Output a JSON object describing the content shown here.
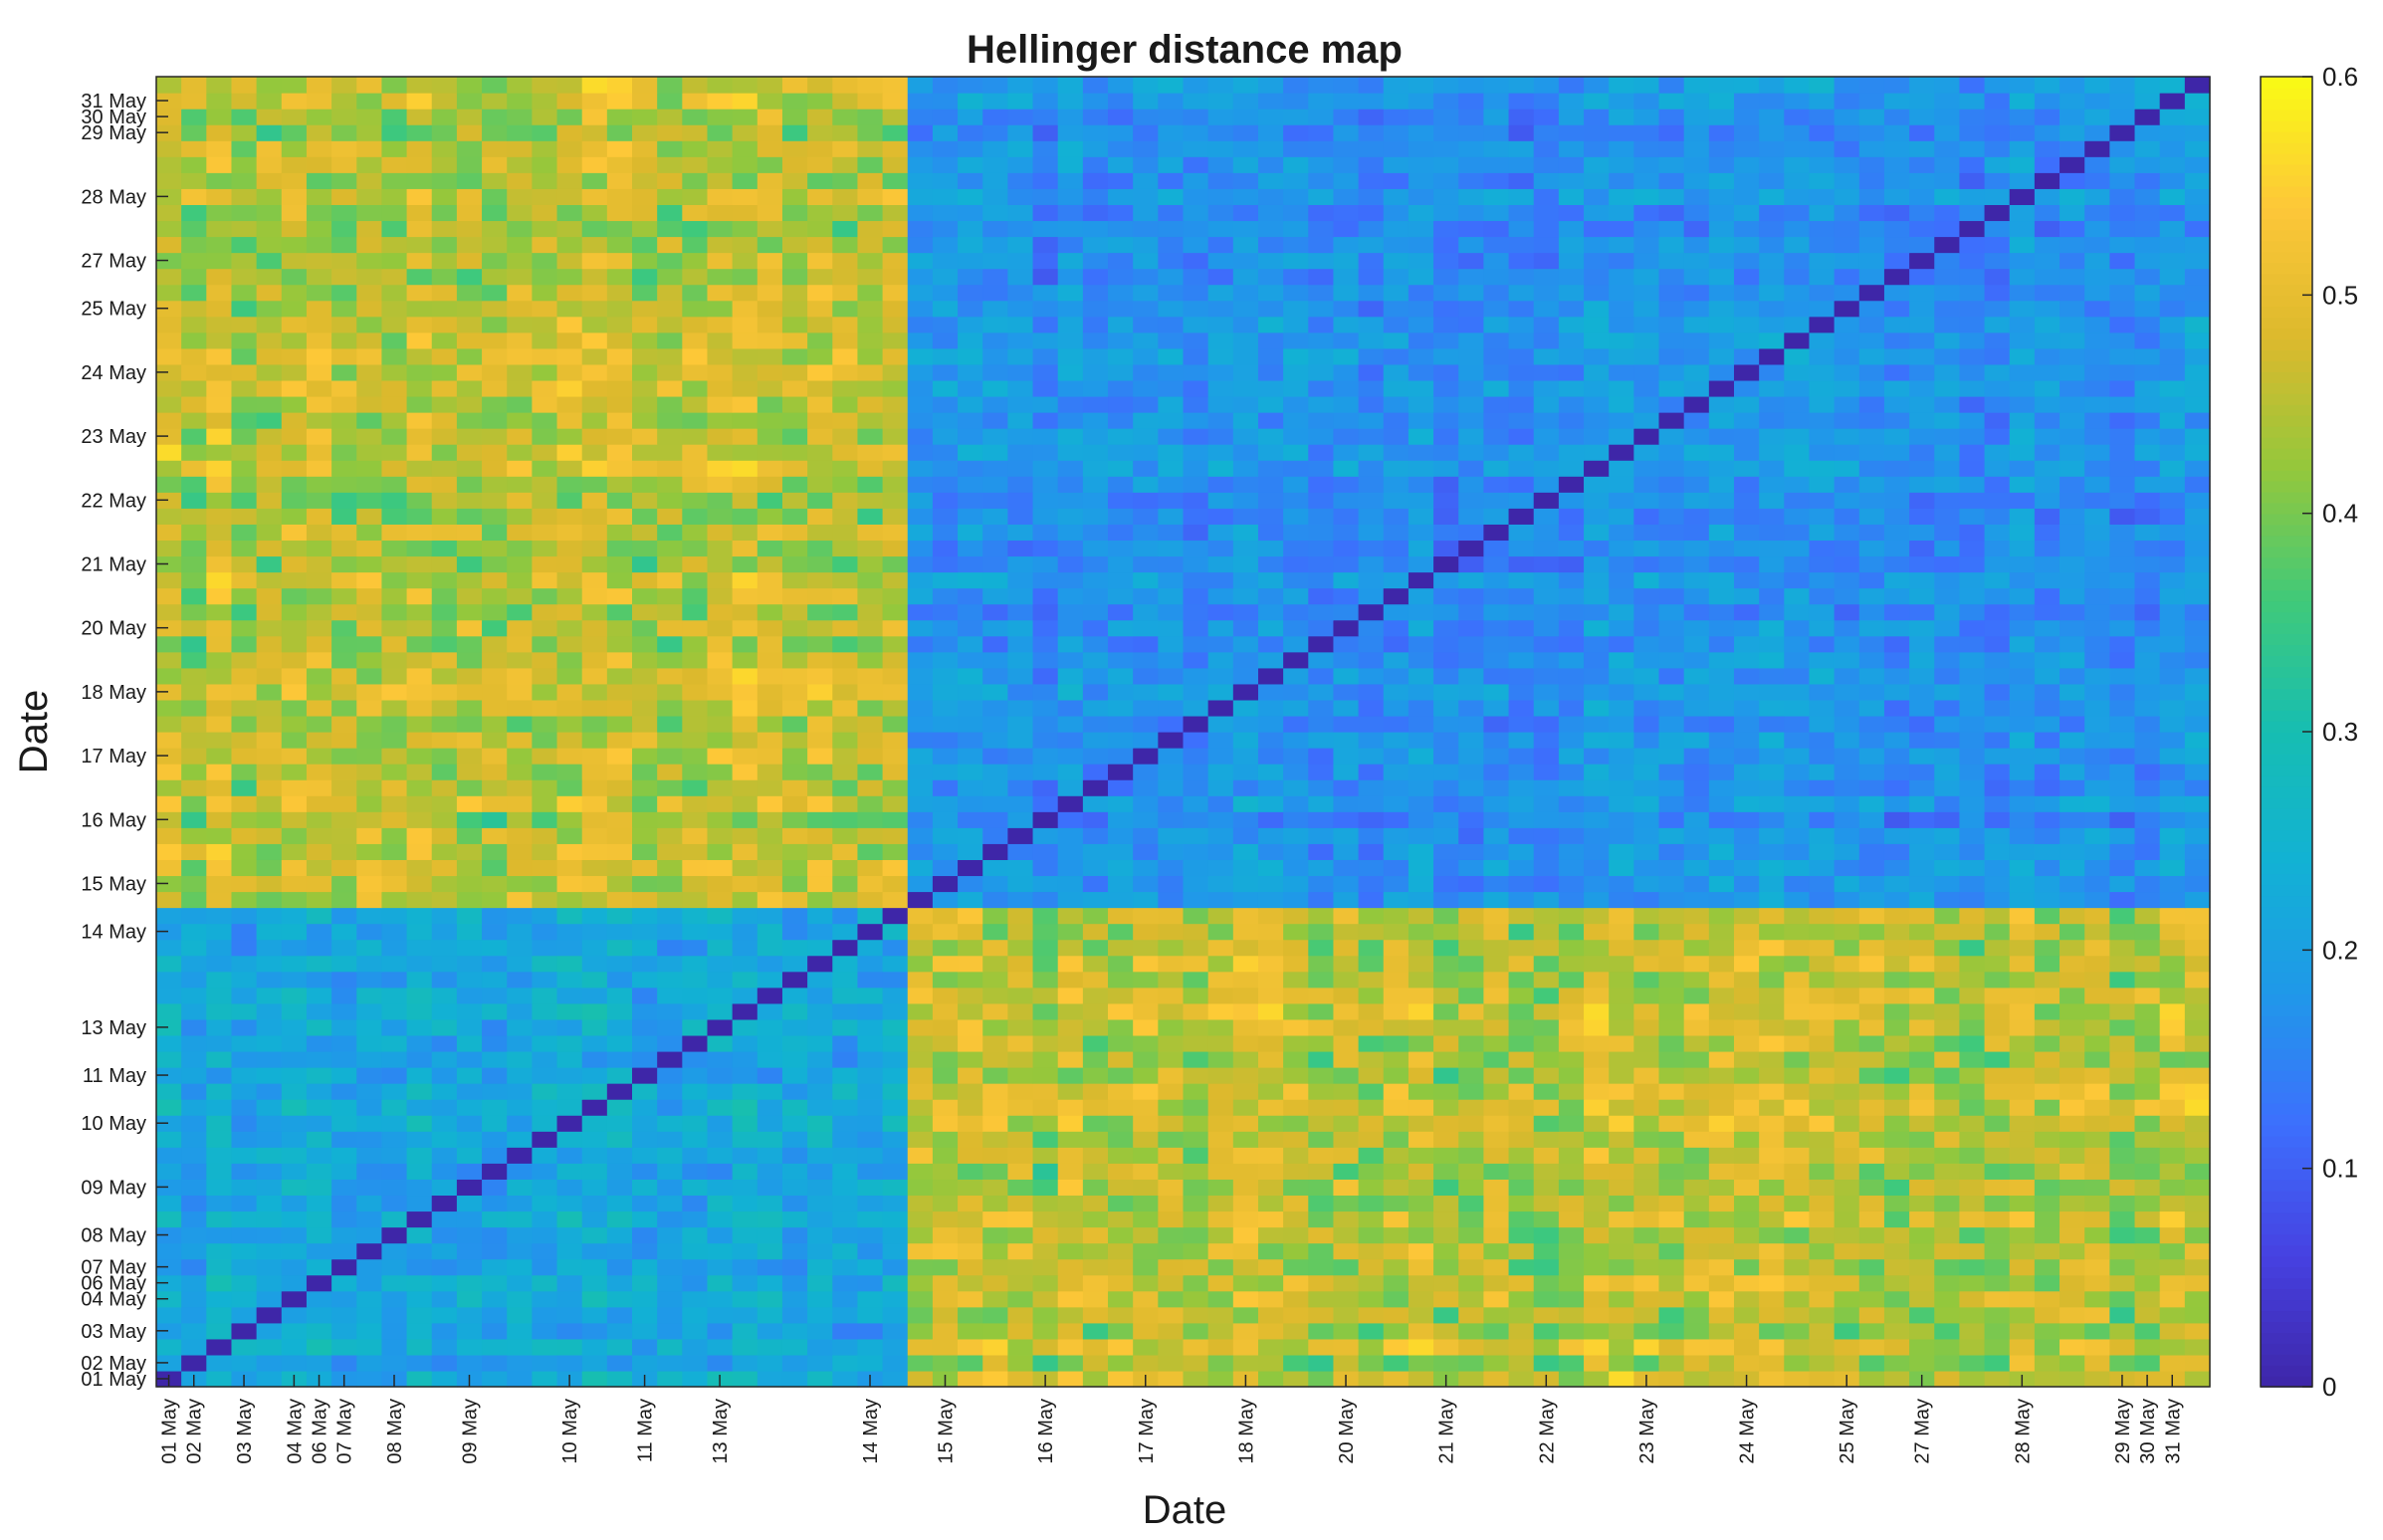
{
  "chart_data": {
    "type": "heatmap",
    "title": "Hellinger distance map",
    "xlabel": "Date",
    "ylabel": "Date",
    "n": 82,
    "block_split_index": 30,
    "x_tick_labels": [
      "01 May",
      "02 May",
      "03 May",
      "04 May",
      "06 May",
      "07 May",
      "08 May",
      "09 May",
      "10 May",
      "11 May",
      "13 May",
      "14 May",
      "15 May",
      "16 May",
      "17 May",
      "18 May",
      "20 May",
      "21 May",
      "22 May",
      "23 May",
      "24 May",
      "25 May",
      "27 May",
      "28 May",
      "29 May",
      "30 May",
      "31 May"
    ],
    "y_tick_labels": [
      "01 May",
      "02 May",
      "03 May",
      "04 May",
      "06 May",
      "07 May",
      "08 May",
      "09 May",
      "10 May",
      "11 May",
      "13 May",
      "14 May",
      "15 May",
      "16 May",
      "17 May",
      "18 May",
      "20 May",
      "21 May",
      "22 May",
      "23 May",
      "24 May",
      "25 May",
      "27 May",
      "28 May",
      "29 May",
      "30 May",
      "31 May"
    ],
    "tick_index": [
      0,
      1,
      3,
      5,
      6,
      7,
      9,
      12,
      16,
      19,
      22,
      28,
      31,
      35,
      39,
      43,
      47,
      51,
      55,
      59,
      63,
      67,
      70,
      74,
      78,
      79,
      80
    ],
    "colorbar": {
      "min": 0,
      "max": 0.6,
      "ticks": [
        0,
        0.1,
        0.2,
        0.3,
        0.4,
        0.5,
        0.6
      ],
      "tick_labels": [
        "0",
        "0.1",
        "0.2",
        "0.3",
        "0.4",
        "0.5",
        "0.6"
      ],
      "colormap": "parula"
    },
    "value_ranges": {
      "diagonal": 0.0,
      "within_first_block": [
        0.12,
        0.32
      ],
      "within_second_block": [
        0.08,
        0.26
      ],
      "between_blocks": [
        0.32,
        0.58
      ]
    }
  }
}
